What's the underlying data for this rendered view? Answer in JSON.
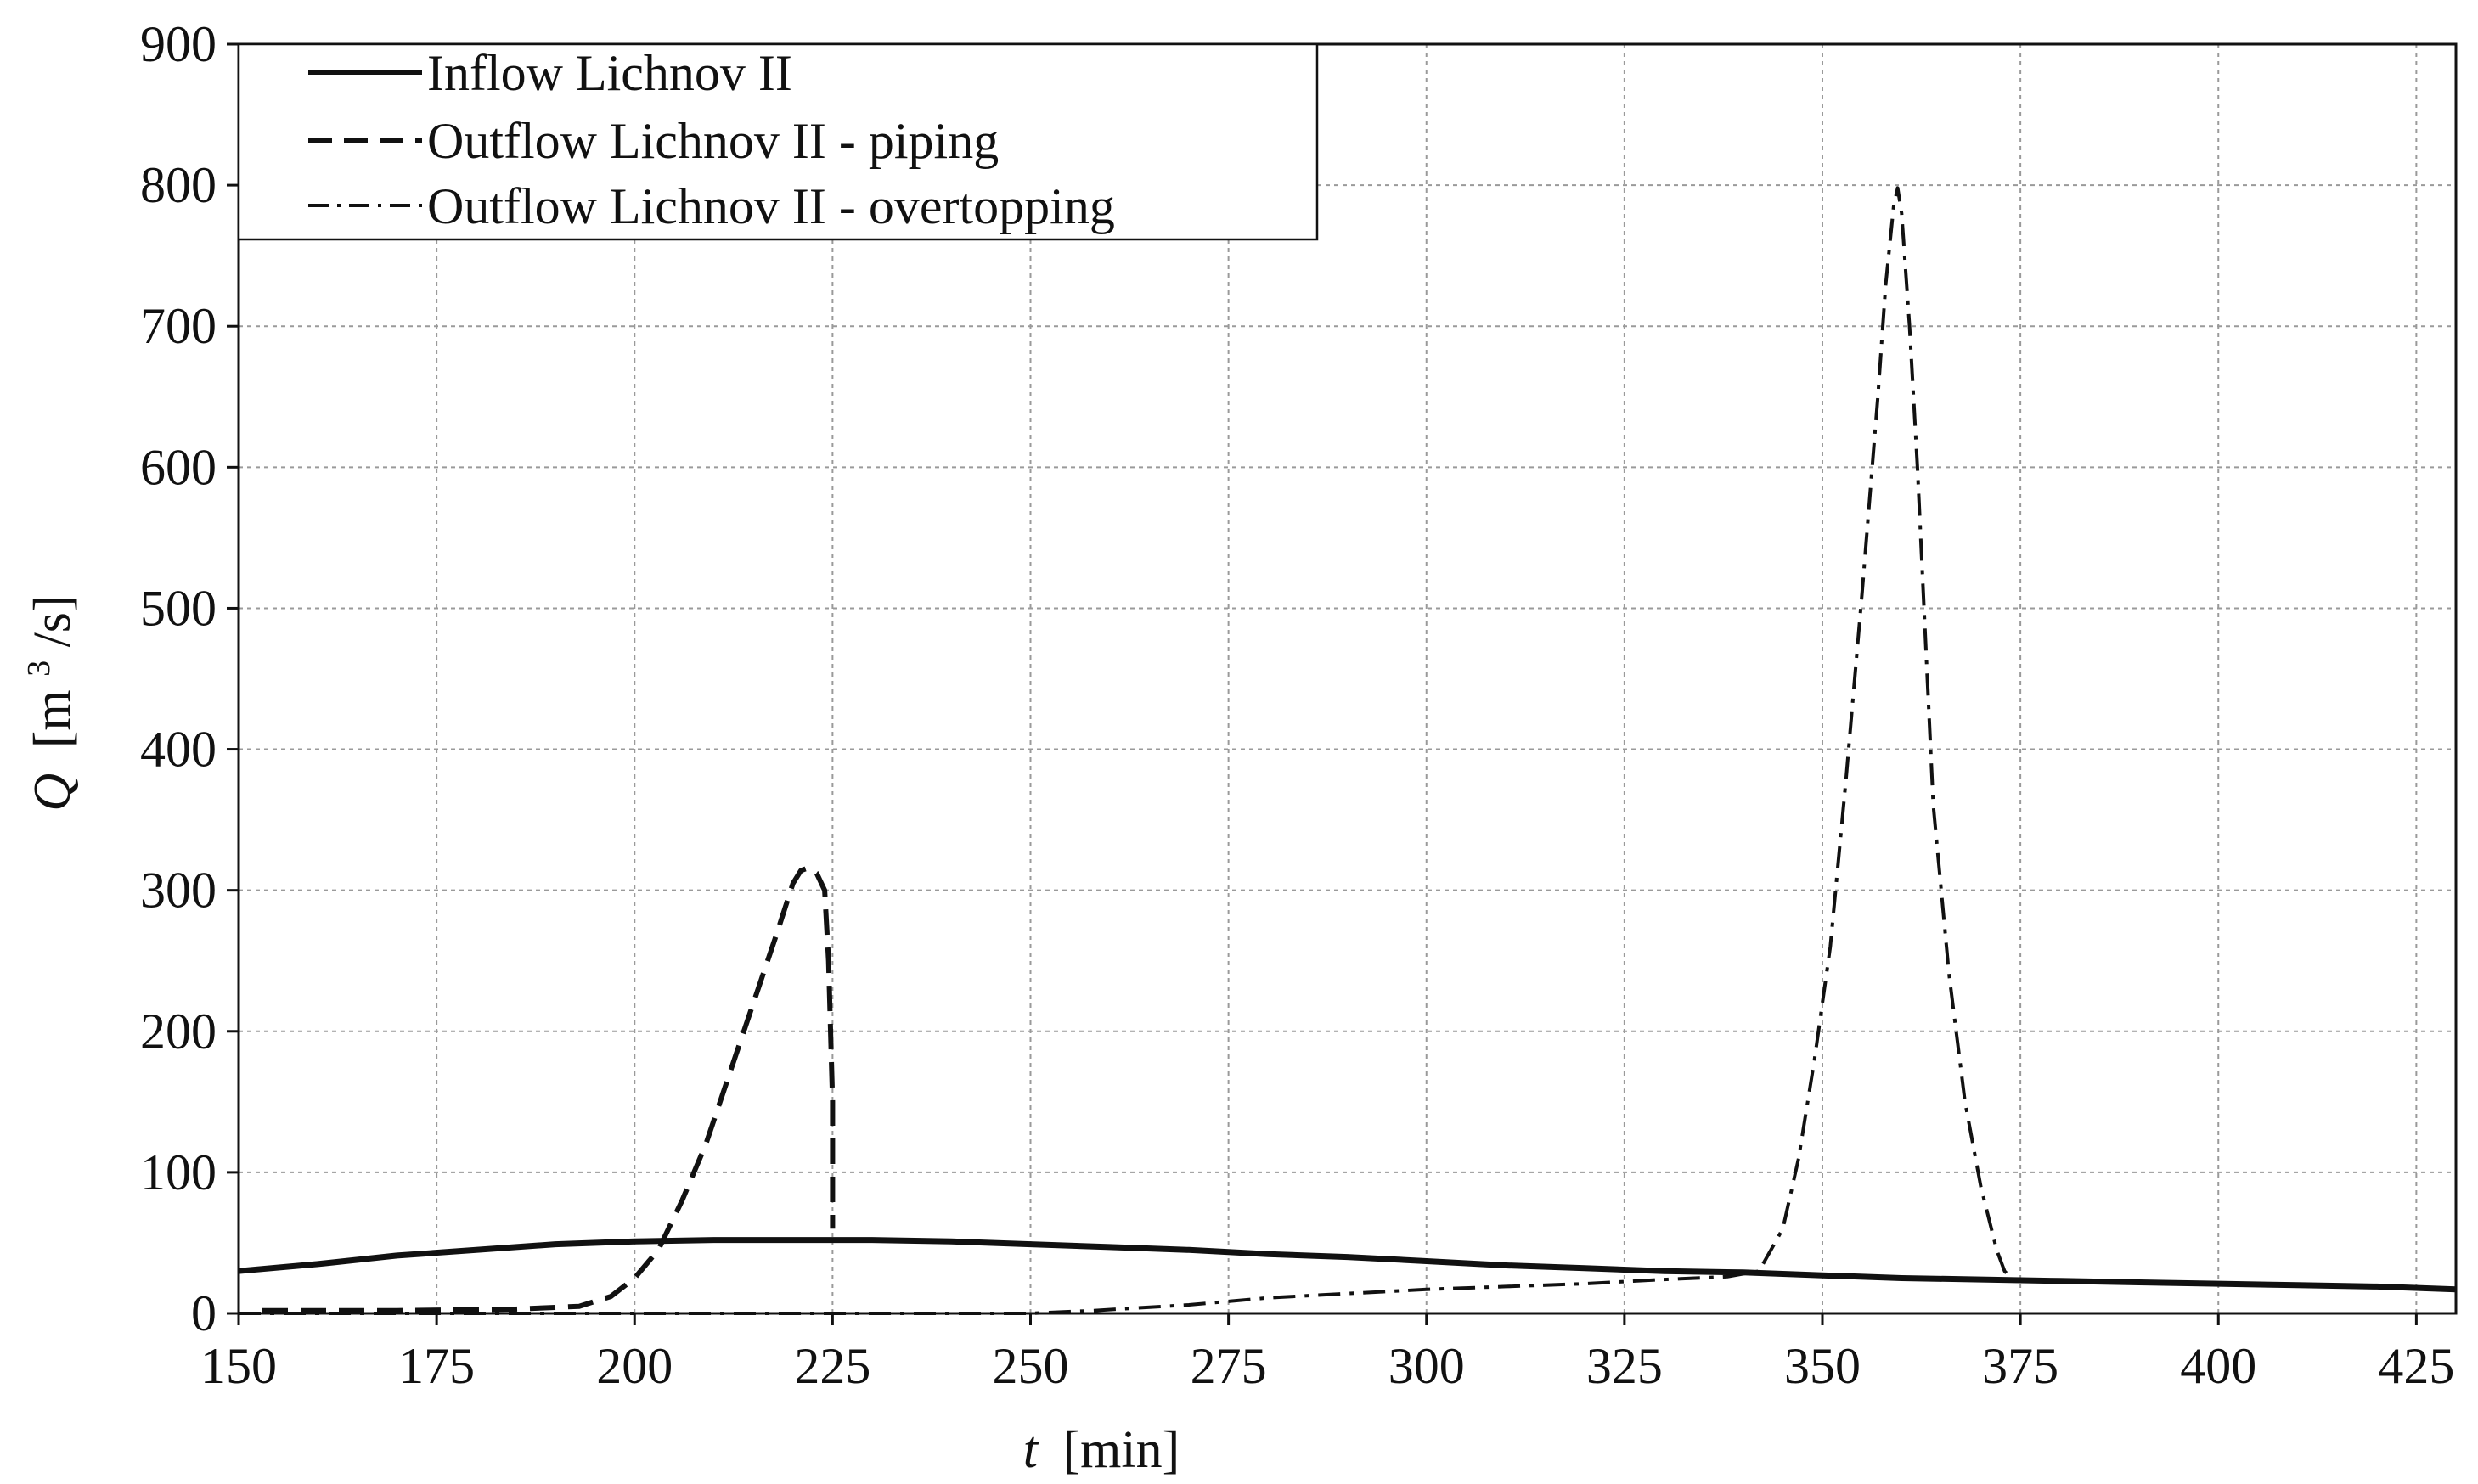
{
  "chart_data": {
    "type": "line",
    "xlabel": "t [min]",
    "xlabel_var": "t",
    "xlabel_unit": "[min]",
    "ylabel_var": "Q",
    "ylabel_unit_pre": "[m",
    "ylabel_unit_sup": "3",
    "ylabel_unit_post": "/s]",
    "xlim": [
      150,
      430
    ],
    "ylim": [
      0,
      900
    ],
    "xticks": [
      150,
      175,
      200,
      225,
      250,
      275,
      300,
      325,
      350,
      375,
      400,
      425
    ],
    "yticks": [
      0,
      100,
      200,
      300,
      400,
      500,
      600,
      700,
      800,
      900
    ],
    "grid": true,
    "legend_position": "top-left",
    "series": [
      {
        "name": "Inflow Lichnov II",
        "style": "solid",
        "points": [
          [
            150,
            30
          ],
          [
            160,
            35
          ],
          [
            170,
            41
          ],
          [
            180,
            45
          ],
          [
            190,
            49
          ],
          [
            200,
            51
          ],
          [
            210,
            52
          ],
          [
            220,
            52
          ],
          [
            230,
            52
          ],
          [
            240,
            51
          ],
          [
            250,
            49
          ],
          [
            260,
            47
          ],
          [
            270,
            45
          ],
          [
            280,
            42
          ],
          [
            290,
            40
          ],
          [
            300,
            37
          ],
          [
            310,
            34
          ],
          [
            320,
            32
          ],
          [
            330,
            30
          ],
          [
            340,
            29
          ],
          [
            350,
            27
          ],
          [
            360,
            25
          ],
          [
            370,
            24
          ],
          [
            380,
            23
          ],
          [
            390,
            22
          ],
          [
            400,
            21
          ],
          [
            410,
            20
          ],
          [
            420,
            19
          ],
          [
            430,
            17
          ]
        ]
      },
      {
        "name": "Outflow Lichnov II - piping",
        "style": "dashed",
        "points": [
          [
            153,
            2
          ],
          [
            170,
            2
          ],
          [
            185,
            3
          ],
          [
            193,
            5
          ],
          [
            197,
            12
          ],
          [
            200,
            25
          ],
          [
            203,
            45
          ],
          [
            206,
            80
          ],
          [
            209,
            120
          ],
          [
            212,
            170
          ],
          [
            215,
            220
          ],
          [
            218,
            270
          ],
          [
            220,
            305
          ],
          [
            221,
            314
          ],
          [
            222,
            316
          ],
          [
            223,
            312
          ],
          [
            224,
            300
          ],
          [
            224.5,
            250
          ],
          [
            225,
            150
          ],
          [
            225,
            60
          ]
        ]
      },
      {
        "name": "Outflow Lichnov II - overtopping",
        "style": "dashdot",
        "points": [
          [
            150,
            0
          ],
          [
            200,
            0
          ],
          [
            250,
            0
          ],
          [
            258,
            2
          ],
          [
            270,
            6
          ],
          [
            280,
            11
          ],
          [
            290,
            14
          ],
          [
            300,
            17
          ],
          [
            310,
            19
          ],
          [
            320,
            21
          ],
          [
            330,
            24
          ],
          [
            338,
            26
          ],
          [
            342,
            30
          ],
          [
            345,
            60
          ],
          [
            347,
            110
          ],
          [
            349,
            180
          ],
          [
            351,
            260
          ],
          [
            353,
            380
          ],
          [
            355,
            510
          ],
          [
            357,
            650
          ],
          [
            358,
            730
          ],
          [
            359,
            785
          ],
          [
            359.5,
            798
          ],
          [
            360,
            780
          ],
          [
            361,
            700
          ],
          [
            362,
            600
          ],
          [
            363,
            480
          ],
          [
            364,
            360
          ],
          [
            366,
            240
          ],
          [
            368,
            150
          ],
          [
            370,
            90
          ],
          [
            372,
            45
          ],
          [
            373,
            30
          ],
          [
            374,
            24
          ]
        ]
      }
    ]
  }
}
